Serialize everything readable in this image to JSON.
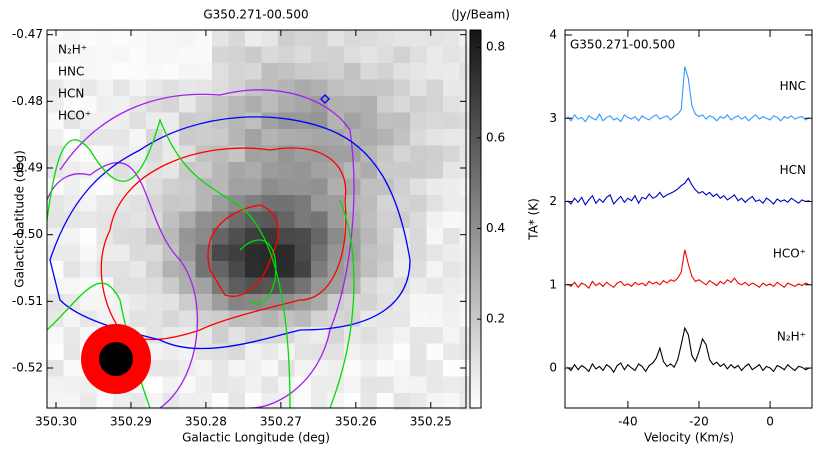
{
  "chart_data": [
    {
      "type": "heatmap",
      "title": "G350.271-00.500",
      "colorbar_label": "(Jy/Beam)",
      "xlabel": "Galactic Longitude (deg)",
      "ylabel": "Galactic Latitude (deg)",
      "xlim": [
        350.3012,
        350.2453
      ],
      "ylim": [
        -0.526,
        -0.4693
      ],
      "xticks": [
        {
          "value": 350.3,
          "label": "350.30"
        },
        350.29,
        350.28,
        350.27,
        350.26,
        350.25
      ],
      "yticks": [
        -0.47,
        -0.48,
        -0.49,
        {
          "value": -0.5,
          "label": "-0.50"
        },
        -0.51,
        -0.52
      ],
      "clim": [
        0.004,
        0.838
      ],
      "cticks": [
        0.2,
        0.4,
        0.6,
        0.8
      ],
      "series": [
        {
          "name": "N₂H⁺",
          "color": "#ff0000"
        },
        {
          "name": "HNC",
          "color": "#a020f0"
        },
        {
          "name": "HCN",
          "color": "#0000ff"
        },
        {
          "name": "HCO⁺",
          "color": "#00dd00"
        }
      ]
    },
    {
      "type": "line",
      "title": "G350.271-00.500",
      "xlabel": "Velocity (Km/s)",
      "ylabel": "TA* (K)",
      "xlim": [
        -57.7,
        11.8
      ],
      "ylim": [
        -0.48,
        4.06
      ],
      "xticks": [
        -40,
        -20,
        0
      ],
      "yticks": [
        0,
        1,
        2,
        3,
        4
      ],
      "x": [
        -57,
        -56,
        -55,
        -54,
        -53,
        -52,
        -51,
        -50,
        -49,
        -48,
        -47,
        -46,
        -45,
        -44,
        -43,
        -42,
        -41,
        -40,
        -39,
        -38,
        -37,
        -36,
        -35,
        -34,
        -33,
        -32,
        -31,
        -30,
        -29,
        -28,
        -27,
        -26,
        -25,
        -24,
        -23,
        -22,
        -21,
        -20,
        -19,
        -18,
        -17,
        -16,
        -15,
        -14,
        -13,
        -12,
        -11,
        -10,
        -9,
        -8,
        -7,
        -6,
        -5,
        -4,
        -3,
        -2,
        -1,
        0,
        1,
        2,
        3,
        4,
        5,
        6,
        7,
        8,
        9,
        10,
        11
      ],
      "series": [
        {
          "name": "HNC",
          "color": "#3399ff",
          "values": [
            3.02,
            2.97,
            3.04,
            2.99,
            3.01,
            2.96,
            3.03,
            3.0,
            2.98,
            3.05,
            2.97,
            3.01,
            3.03,
            2.98,
            3.0,
            2.96,
            3.04,
            3.01,
            2.99,
            3.02,
            2.97,
            3.03,
            3.0,
            2.98,
            3.02,
            3.04,
            2.99,
            3.01,
            3.03,
            2.98,
            3.02,
            3.05,
            3.1,
            3.62,
            3.48,
            3.15,
            3.05,
            3.02,
            3.04,
            2.99,
            3.03,
            3.01,
            2.97,
            3.02,
            3.0,
            3.04,
            2.98,
            3.01,
            3.03,
            2.99,
            3.02,
            2.97,
            3.01,
            3.04,
            2.99,
            3.02,
            3.0,
            2.98,
            3.03,
            3.01,
            2.97,
            3.02,
            3.0,
            3.03,
            2.99,
            3.01,
            3.02,
            2.98,
            3.01
          ]
        },
        {
          "name": "HCN",
          "color": "#0000cc",
          "values": [
            2.01,
            1.97,
            2.04,
            1.99,
            2.05,
            1.96,
            2.02,
            2.07,
            1.98,
            2.03,
            1.99,
            2.05,
            2.08,
            1.97,
            2.02,
            2.06,
            1.99,
            2.04,
            2.01,
            2.07,
            1.98,
            2.05,
            2.03,
            2.09,
            2.04,
            2.06,
            2.11,
            2.05,
            2.08,
            2.1,
            2.12,
            2.15,
            2.19,
            2.22,
            2.28,
            2.2,
            2.14,
            2.1,
            2.12,
            2.08,
            2.11,
            2.06,
            2.09,
            2.04,
            2.07,
            2.02,
            2.05,
            2.08,
            2.01,
            2.04,
            1.99,
            2.03,
            2.06,
            2.0,
            2.02,
            1.98,
            2.04,
            2.01,
            1.97,
            2.03,
            2.0,
            2.02,
            1.99,
            2.04,
            2.01,
            1.98,
            2.02,
            2.0,
            2.01
          ]
        },
        {
          "name": "HCO⁺",
          "color": "#ee0000",
          "values": [
            1.01,
            0.98,
            1.03,
            0.97,
            1.02,
            1.0,
            0.96,
            1.04,
            0.99,
            1.02,
            0.98,
            1.03,
            1.0,
            0.97,
            1.02,
            1.04,
            0.99,
            1.01,
            0.98,
            1.03,
            1.0,
            1.02,
            0.99,
            1.04,
            1.01,
            1.03,
            1.0,
            1.05,
            1.02,
            1.06,
            1.04,
            1.08,
            1.15,
            1.42,
            1.25,
            1.1,
            1.04,
            1.06,
            1.03,
            1.0,
            1.05,
            1.02,
            0.99,
            1.04,
            1.01,
            1.06,
            1.03,
            1.08,
            1.02,
            1.0,
            1.03,
            0.99,
            1.02,
            1.0,
            0.97,
            1.02,
            0.99,
            1.01,
            0.98,
            1.03,
            1.0,
            0.97,
            1.02,
            1.0,
            0.98,
            1.01,
            0.99,
            1.02,
            1.0
          ]
        },
        {
          "name": "N₂H⁺",
          "color": "#000000",
          "values": [
            0.01,
            -0.03,
            0.04,
            -0.02,
            0.03,
            0.0,
            -0.04,
            0.05,
            -0.01,
            0.02,
            -0.03,
            0.04,
            0.01,
            -0.05,
            0.03,
            0.06,
            -0.02,
            0.04,
            0.0,
            -0.03,
            0.05,
            0.02,
            -0.04,
            0.03,
            0.06,
            0.12,
            0.24,
            0.08,
            0.02,
            0.05,
            0.01,
            0.1,
            0.28,
            0.48,
            0.4,
            0.15,
            0.08,
            0.2,
            0.35,
            0.28,
            0.1,
            0.04,
            0.07,
            0.02,
            0.05,
            -0.01,
            0.04,
            0.0,
            0.03,
            -0.03,
            0.02,
            0.05,
            -0.02,
            0.01,
            0.04,
            -0.03,
            0.02,
            0.0,
            -0.04,
            0.03,
            0.01,
            -0.02,
            0.04,
            0.0,
            -0.03,
            0.02,
            0.01,
            -0.02,
            0.0
          ]
        }
      ]
    }
  ]
}
